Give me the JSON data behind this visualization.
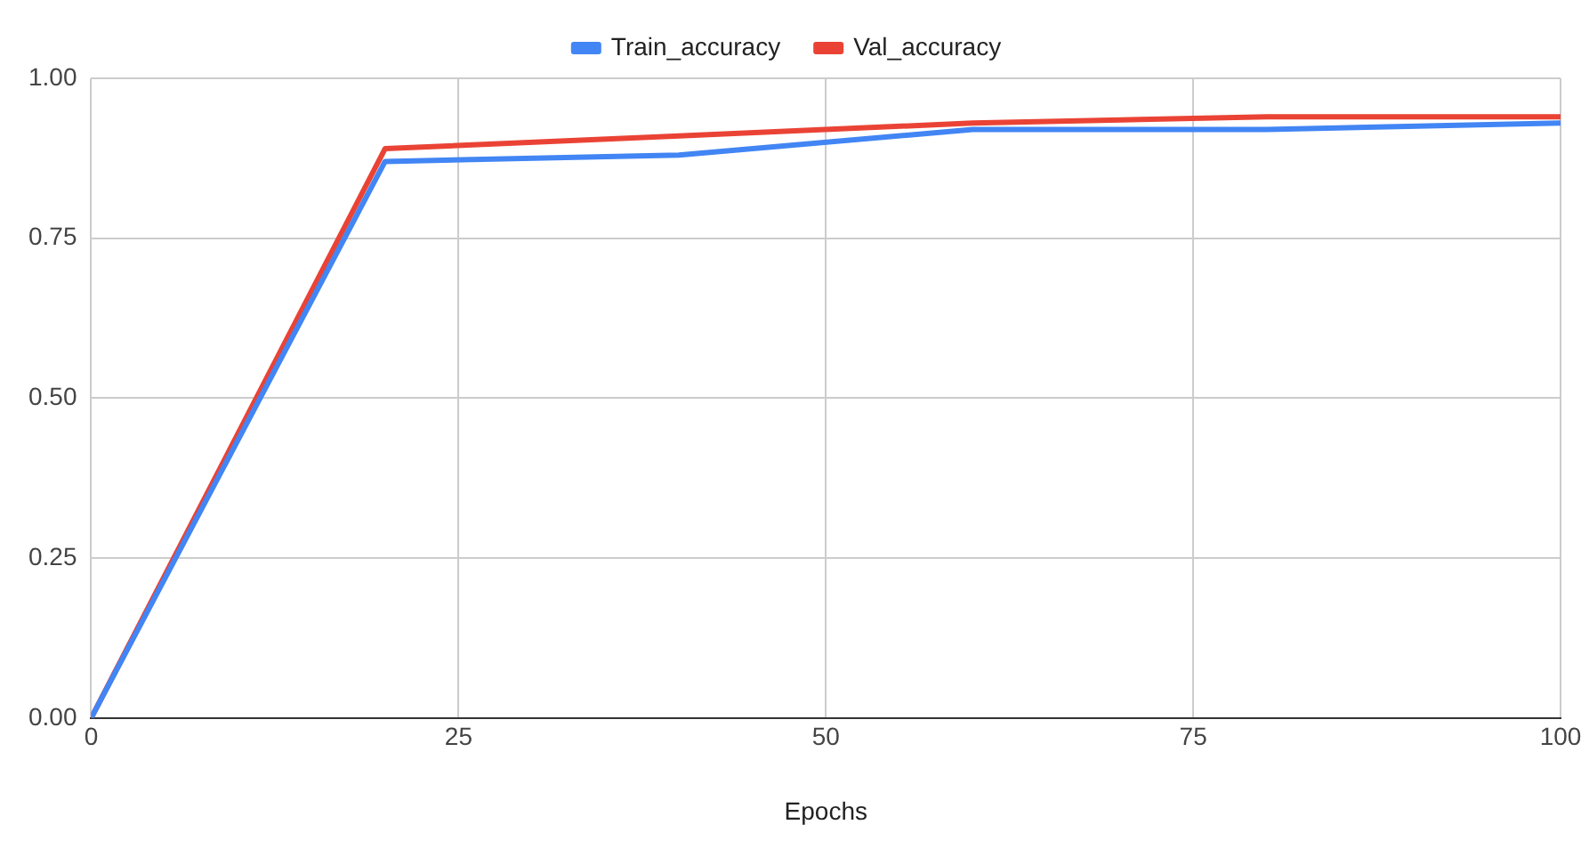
{
  "chart_data": {
    "type": "line",
    "xlabel": "Epochs",
    "x": [
      0,
      20,
      40,
      60,
      80,
      100
    ],
    "series": [
      {
        "name": "Train_accuracy",
        "color": "#4285f4",
        "values": [
          0,
          0.87,
          0.88,
          0.92,
          0.92,
          0.93
        ]
      },
      {
        "name": "Val_accuracy",
        "color": "#ea4335",
        "values": [
          0,
          0.89,
          0.91,
          0.93,
          0.94,
          0.94
        ]
      }
    ],
    "xlim": [
      0,
      100
    ],
    "xticks": [
      0,
      25,
      50,
      75,
      100
    ],
    "ylim": [
      0,
      1
    ],
    "yticks": [
      {
        "value": 0,
        "label": "0.00"
      },
      {
        "value": 0.25,
        "label": "0.25"
      },
      {
        "value": 0.5,
        "label": "0.50"
      },
      {
        "value": 0.75,
        "label": "0.75"
      },
      {
        "value": 1,
        "label": "1.00"
      }
    ],
    "grid": true,
    "legend": "top",
    "marker": "none",
    "line_style": "solid"
  }
}
